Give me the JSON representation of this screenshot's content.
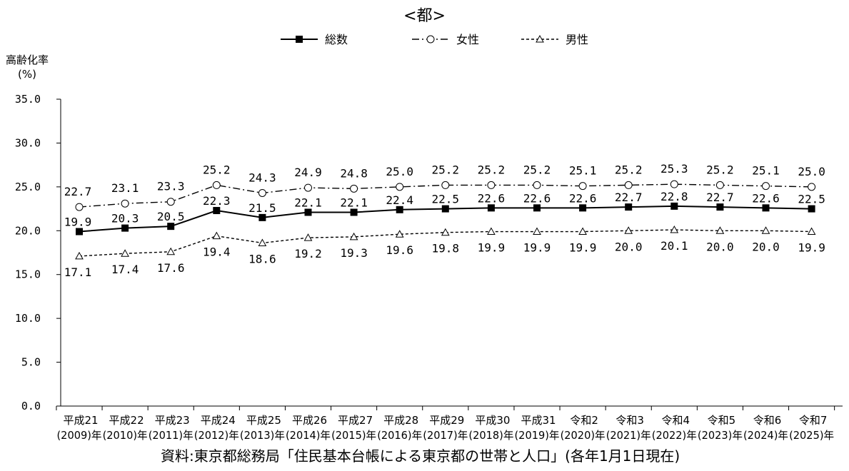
{
  "chart_data": {
    "type": "line",
    "title": "<都>",
    "ylabel_line1": "高齢化率",
    "ylabel_line2": "(%)",
    "source": "資料:東京都総務局「住民基本台帳による東京都の世帯と人口」(各年1月1日現在)",
    "ylim": [
      0,
      35
    ],
    "yticks": [
      "0.0",
      "5.0",
      "10.0",
      "15.0",
      "20.0",
      "25.0",
      "30.0",
      "35.0"
    ],
    "categories": [
      {
        "era": "平成21",
        "year": "(2009)年"
      },
      {
        "era": "平成22",
        "year": "(2010)年"
      },
      {
        "era": "平成23",
        "year": "(2011)年"
      },
      {
        "era": "平成24",
        "year": "(2012)年"
      },
      {
        "era": "平成25",
        "year": "(2013)年"
      },
      {
        "era": "平成26",
        "year": "(2014)年"
      },
      {
        "era": "平成27",
        "year": "(2015)年"
      },
      {
        "era": "平成28",
        "year": "(2016)年"
      },
      {
        "era": "平成29",
        "year": "(2017)年"
      },
      {
        "era": "平成30",
        "year": "(2018)年"
      },
      {
        "era": "平成31",
        "year": "(2019)年"
      },
      {
        "era": "令和2",
        "year": "(2020)年"
      },
      {
        "era": "令和3",
        "year": "(2021)年"
      },
      {
        "era": "令和4",
        "year": "(2022)年"
      },
      {
        "era": "令和5",
        "year": "(2023)年"
      },
      {
        "era": "令和6",
        "year": "(2024)年"
      },
      {
        "era": "令和7",
        "year": "(2025)年"
      }
    ],
    "legend_position": "top",
    "grid": false,
    "series": [
      {
        "name": "総数",
        "style": "solid",
        "marker": "square-filled",
        "values": [
          19.9,
          20.3,
          20.5,
          22.3,
          21.5,
          22.1,
          22.1,
          22.4,
          22.5,
          22.6,
          22.6,
          22.6,
          22.7,
          22.8,
          22.7,
          22.6,
          22.5
        ],
        "labels": [
          "19.9",
          "20.3",
          "20.5",
          "22.3",
          "21.5",
          "22.1",
          "22.1",
          "22.4",
          "22.5",
          "22.6",
          "22.6",
          "22.6",
          "22.7",
          "22.8",
          "22.7",
          "22.6",
          "22.5"
        ]
      },
      {
        "name": "女性",
        "style": "dashdot",
        "marker": "circle-open",
        "values": [
          22.7,
          23.1,
          23.3,
          25.2,
          24.3,
          24.9,
          24.8,
          25.0,
          25.2,
          25.2,
          25.2,
          25.1,
          25.2,
          25.3,
          25.2,
          25.1,
          25.0
        ],
        "labels": [
          "22.7",
          "23.1",
          "23.3",
          "25.2",
          "24.3",
          "24.9",
          "24.8",
          "25.0",
          "25.2",
          "25.2",
          "25.2",
          "25.1",
          "25.2",
          "25.3",
          "25.2",
          "25.1",
          "25.0"
        ]
      },
      {
        "name": "男性",
        "style": "dashed",
        "marker": "triangle-open",
        "values": [
          17.1,
          17.4,
          17.6,
          19.4,
          18.6,
          19.2,
          19.3,
          19.6,
          19.8,
          19.9,
          19.9,
          19.9,
          20.0,
          20.1,
          20.0,
          20.0,
          19.9
        ],
        "labels": [
          "17.1",
          "17.4",
          "17.6",
          "19.4",
          "18.6",
          "19.2",
          "19.3",
          "19.6",
          "19.8",
          "19.9",
          "19.9",
          "19.9",
          "20.0",
          "20.1",
          "20.0",
          "20.0",
          "19.9"
        ]
      }
    ]
  }
}
